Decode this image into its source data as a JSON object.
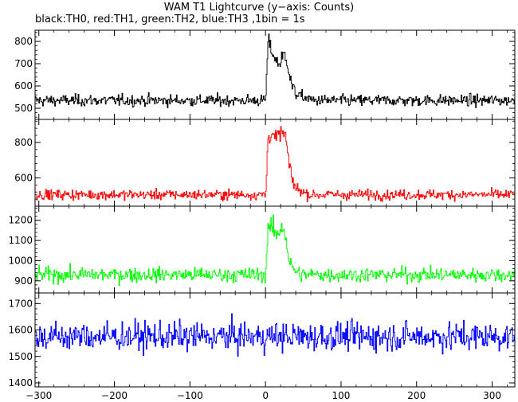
{
  "title": "WAM T1 Lightcurve (y−axis: Counts)",
  "subtitle": "black:TH0, red:TH1, green:TH2, blue:TH3 ,1bin = 1s",
  "chart_data": {
    "type": "line",
    "shared_x": {
      "range": [
        -305,
        330
      ],
      "ticks": [
        -300,
        -200,
        -100,
        0,
        100,
        200,
        300
      ],
      "tick_labels": [
        "−300",
        "−200",
        "−100",
        "0",
        "100",
        "200",
        "300"
      ]
    },
    "bin_seconds": 1,
    "panels": [
      {
        "series_key": "TH0",
        "color": "#000000",
        "ylim": [
          450,
          850
        ],
        "yticks": [
          500,
          600,
          700,
          800
        ],
        "baseline": 535,
        "noise": 18,
        "burst": [
          [
            0,
            560
          ],
          [
            3,
            800
          ],
          [
            8,
            760
          ],
          [
            12,
            720
          ],
          [
            18,
            700
          ],
          [
            24,
            740
          ],
          [
            28,
            720
          ],
          [
            32,
            640
          ],
          [
            36,
            580
          ],
          [
            45,
            555
          ],
          [
            60,
            540
          ]
        ]
      },
      {
        "series_key": "TH1",
        "color": "#ff0000",
        "ylim": [
          440,
          930
        ],
        "yticks": [
          600,
          800
        ],
        "baseline": 505,
        "noise": 20,
        "burst": [
          [
            0,
            520
          ],
          [
            3,
            830
          ],
          [
            8,
            850
          ],
          [
            14,
            820
          ],
          [
            20,
            860
          ],
          [
            26,
            840
          ],
          [
            30,
            700
          ],
          [
            34,
            600
          ],
          [
            40,
            540
          ],
          [
            55,
            510
          ]
        ]
      },
      {
        "series_key": "TH2",
        "color": "#00ff00",
        "ylim": [
          840,
          1270
        ],
        "yticks": [
          900,
          1000,
          1100,
          1200
        ],
        "baseline": 930,
        "noise": 25,
        "burst": [
          [
            0,
            950
          ],
          [
            3,
            1180
          ],
          [
            10,
            1150
          ],
          [
            16,
            1120
          ],
          [
            22,
            1180
          ],
          [
            26,
            1130
          ],
          [
            30,
            1020
          ],
          [
            35,
            960
          ],
          [
            45,
            935
          ]
        ]
      },
      {
        "series_key": "TH3",
        "color": "#0000ff",
        "ylim": [
          1385,
          1740
        ],
        "yticks": [
          1400,
          1500,
          1600,
          1700
        ],
        "baseline": 1575,
        "noise": 38,
        "burst": []
      }
    ]
  }
}
